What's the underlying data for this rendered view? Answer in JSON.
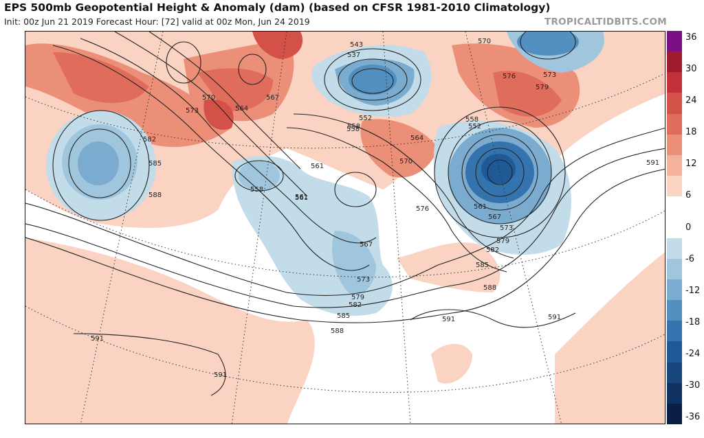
{
  "header": {
    "title": "EPS 500mb Geopotential Height & Anomaly (dam) (based on CFSR 1981-2010 Climatology)",
    "subtitle": "Init: 00z Jun 21 2019   Forecast Hour: [72]   valid at 00z Mon, Jun 24 2019",
    "brand": "TROPICALTIDBITS.COM"
  },
  "colorbar": {
    "labels": [
      "36",
      "30",
      "24",
      "18",
      "12",
      "6",
      "0",
      "-6",
      "-12",
      "-18",
      "-24",
      "-30",
      "-36"
    ],
    "colors": [
      "#7b0f85",
      "#9e1b2d",
      "#c03237",
      "#d4514a",
      "#e06d5c",
      "#eb8f78",
      "#f4b29b",
      "#fad3c2",
      "#ffffff",
      "#ffffff",
      "#c2dcea",
      "#a0c6de",
      "#7bacd0",
      "#5390c0",
      "#3473ad",
      "#1f5a96",
      "#16467c",
      "#0f3262",
      "#0a1f45"
    ]
  },
  "contour_labels": [
    {
      "text": "543"
    },
    {
      "text": "537"
    },
    {
      "text": "570"
    },
    {
      "text": "576"
    },
    {
      "text": "573"
    },
    {
      "text": "579"
    },
    {
      "text": "570"
    },
    {
      "text": "573"
    },
    {
      "text": "564"
    },
    {
      "text": "567"
    },
    {
      "text": "582"
    },
    {
      "text": "585"
    },
    {
      "text": "588"
    },
    {
      "text": "558"
    },
    {
      "text": "561"
    },
    {
      "text": "558"
    },
    {
      "text": "552"
    },
    {
      "text": "558"
    },
    {
      "text": "564"
    },
    {
      "text": "570"
    },
    {
      "text": "558"
    },
    {
      "text": "552"
    },
    {
      "text": "561"
    },
    {
      "text": "576"
    },
    {
      "text": "561"
    },
    {
      "text": "567"
    },
    {
      "text": "573"
    },
    {
      "text": "579"
    },
    {
      "text": "582"
    },
    {
      "text": "585"
    },
    {
      "text": "588"
    },
    {
      "text": "567"
    },
    {
      "text": "573"
    },
    {
      "text": "579"
    },
    {
      "text": "582"
    },
    {
      "text": "585"
    },
    {
      "text": "588"
    },
    {
      "text": "591"
    },
    {
      "text": "591"
    },
    {
      "text": "591"
    },
    {
      "text": "591"
    },
    {
      "text": "591"
    },
    {
      "text": "561"
    }
  ]
}
